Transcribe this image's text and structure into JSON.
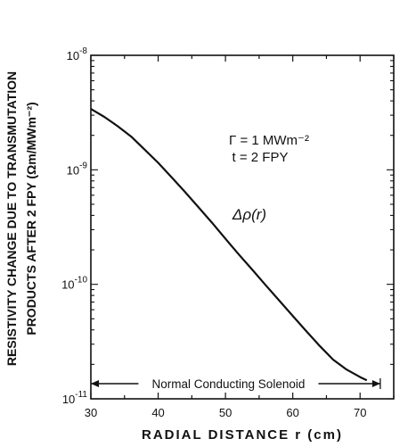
{
  "chart_data": {
    "type": "line",
    "title": "",
    "xlabel": "RADIAL DISTANCE r (cm)",
    "ylabel_line1": "RESISTIVITY CHANGE DUE TO TRANSMUTATION",
    "ylabel_line2": "PRODUCTS AFTER 2 FPY (Ωm/MWm⁻²)",
    "xlim": [
      30,
      75
    ],
    "ylim": [
      1e-11,
      1e-08
    ],
    "yscale": "log",
    "grid": false,
    "xticks": [
      30,
      40,
      50,
      60,
      70
    ],
    "xtick_labels": [
      "30",
      "40",
      "50",
      "60",
      "70"
    ],
    "yticks": [
      1e-11,
      1e-10,
      1e-09,
      1e-08
    ],
    "ytick_labels": [
      {
        "base": "10",
        "exp": "-11"
      },
      {
        "base": "10",
        "exp": "-10"
      },
      {
        "base": "10",
        "exp": "-9"
      },
      {
        "base": "10",
        "exp": "-8"
      }
    ],
    "series": [
      {
        "name": "Δρ(r)",
        "x": [
          30,
          32,
          34,
          36,
          38,
          40,
          42,
          44,
          46,
          48,
          50,
          52,
          54,
          56,
          58,
          60,
          62,
          64,
          66,
          68,
          70,
          71
        ],
        "y": [
          3.4e-09,
          2.9e-09,
          2.4e-09,
          1.95e-09,
          1.5e-09,
          1.15e-09,
          8.6e-10,
          6.4e-10,
          4.7e-10,
          3.45e-10,
          2.5e-10,
          1.82e-10,
          1.34e-10,
          9.8e-11,
          7.2e-11,
          5.3e-11,
          3.9e-11,
          2.9e-11,
          2.2e-11,
          1.8e-11,
          1.55e-11,
          1.45e-11
        ]
      }
    ],
    "annotations": {
      "gamma_text": "Γ = 1 MWm⁻²",
      "time_text": "t = 2 FPY",
      "curve_label": "Δρ(r)",
      "solenoid_label": "Normal Conducting Solenoid",
      "solenoid_range": [
        30,
        73
      ]
    }
  }
}
